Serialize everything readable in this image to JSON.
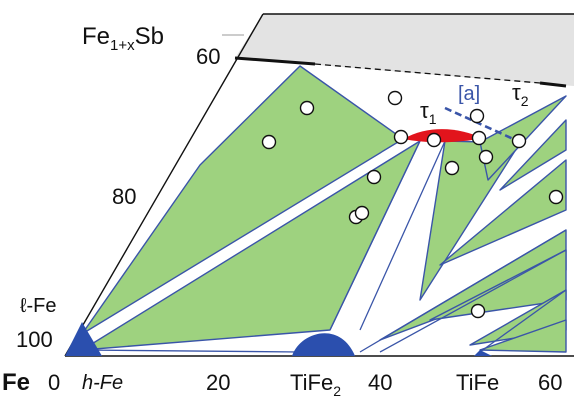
{
  "diagram": {
    "corner_labels": {
      "fe": "Fe",
      "fe1xsb_main": "Fe",
      "fe1xsb_sub": "1+x",
      "fe1xsb_tail": "Sb"
    },
    "bottom_axis_ticks": [
      "0",
      "20",
      "40",
      "60"
    ],
    "left_axis_ticks": [
      "100",
      "80",
      "60"
    ],
    "bottom_compound_labels": {
      "tife2_main": "TiFe",
      "tife2_sub": "2",
      "tife": "TiFe"
    },
    "phase_labels": {
      "l_fe": "ℓ-Fe",
      "h_fe": "h-Fe",
      "tau1_main": "τ",
      "tau1_sub": "1",
      "tau2_main": "τ",
      "tau2_sub": "2",
      "a_marker": "[a]"
    },
    "colors": {
      "three_phase_fill": "#9ed27f",
      "tie_line": "#3a55a8",
      "single_phase_blue": "#2b4fae",
      "tau1_red": "#e2141c",
      "sb_rich_region": "#e3e3e3",
      "a_dashed_line": "#3a55a8"
    }
  }
}
